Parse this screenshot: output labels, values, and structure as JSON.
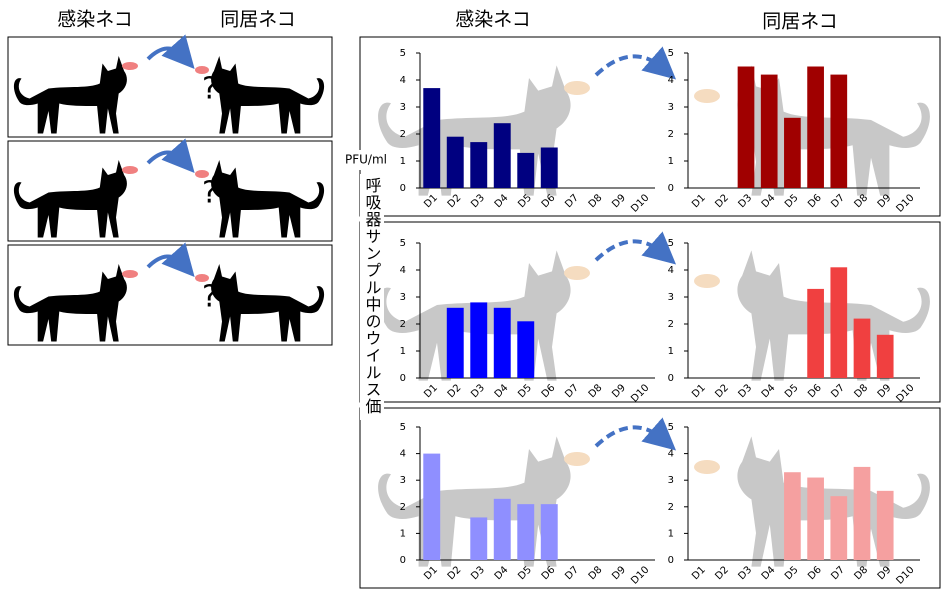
{
  "header": {
    "left_infected": "感染ネコ",
    "left_cohoused": "同居ネコ",
    "right_infected": "感染ネコ",
    "right_cohoused": "同居ネコ"
  },
  "question_mark": "?",
  "y_axis_unit": "PFU/ml",
  "y_axis_title": "呼吸器サンプル中のウイルス価",
  "chart_data": [
    {
      "type": "bar",
      "categories": [
        "D1",
        "D2",
        "D3",
        "D4",
        "D5",
        "D6",
        "D7",
        "D8",
        "D9",
        "D10"
      ],
      "values": [
        3.7,
        1.9,
        1.7,
        2.4,
        1.3,
        1.5,
        null,
        null,
        null,
        null
      ],
      "color": "#000080",
      "ylim": [
        0,
        5
      ],
      "yticks": [
        0,
        1,
        2,
        3,
        4,
        5
      ]
    },
    {
      "type": "bar",
      "categories": [
        "D1",
        "D2",
        "D3",
        "D4",
        "D5",
        "D6",
        "D7",
        "D8",
        "D9",
        "D10"
      ],
      "values": [
        null,
        null,
        4.5,
        4.2,
        2.6,
        4.5,
        4.2,
        null,
        null,
        null
      ],
      "color": "#a00000",
      "ylim": [
        0,
        5
      ],
      "yticks": [
        0,
        1,
        2,
        3,
        4,
        5
      ]
    },
    {
      "type": "bar",
      "categories": [
        "D1",
        "D2",
        "D3",
        "D4",
        "D5",
        "D6",
        "D7",
        "D8",
        "D9",
        "D10"
      ],
      "values": [
        null,
        2.6,
        2.8,
        2.6,
        2.1,
        null,
        null,
        null,
        null,
        null
      ],
      "color": "#0000ff",
      "ylim": [
        0,
        5
      ],
      "yticks": [
        0,
        1,
        2,
        3,
        4,
        5
      ]
    },
    {
      "type": "bar",
      "categories": [
        "D1",
        "D2",
        "D3",
        "D4",
        "D5",
        "D6",
        "D7",
        "D8",
        "D9",
        "D10"
      ],
      "values": [
        null,
        null,
        null,
        null,
        null,
        3.3,
        4.1,
        2.2,
        1.6,
        null
      ],
      "color": "#f04040",
      "ylim": [
        0,
        5
      ],
      "yticks": [
        0,
        1,
        2,
        3,
        4,
        5
      ]
    },
    {
      "type": "bar",
      "categories": [
        "D1",
        "D2",
        "D3",
        "D4",
        "D5",
        "D6",
        "D7",
        "D8",
        "D9",
        "D10"
      ],
      "values": [
        4.0,
        null,
        1.6,
        2.3,
        2.1,
        2.1,
        null,
        null,
        null,
        null
      ],
      "color": "#8f8fff",
      "ylim": [
        0,
        5
      ],
      "yticks": [
        0,
        1,
        2,
        3,
        4,
        5
      ]
    },
    {
      "type": "bar",
      "categories": [
        "D1",
        "D2",
        "D3",
        "D4",
        "D5",
        "D6",
        "D7",
        "D8",
        "D9",
        "D10"
      ],
      "values": [
        null,
        null,
        null,
        null,
        3.3,
        3.1,
        2.4,
        3.5,
        2.6,
        null
      ],
      "color": "#f5a0a0",
      "ylim": [
        0,
        5
      ],
      "yticks": [
        0,
        1,
        2,
        3,
        4,
        5
      ]
    }
  ]
}
